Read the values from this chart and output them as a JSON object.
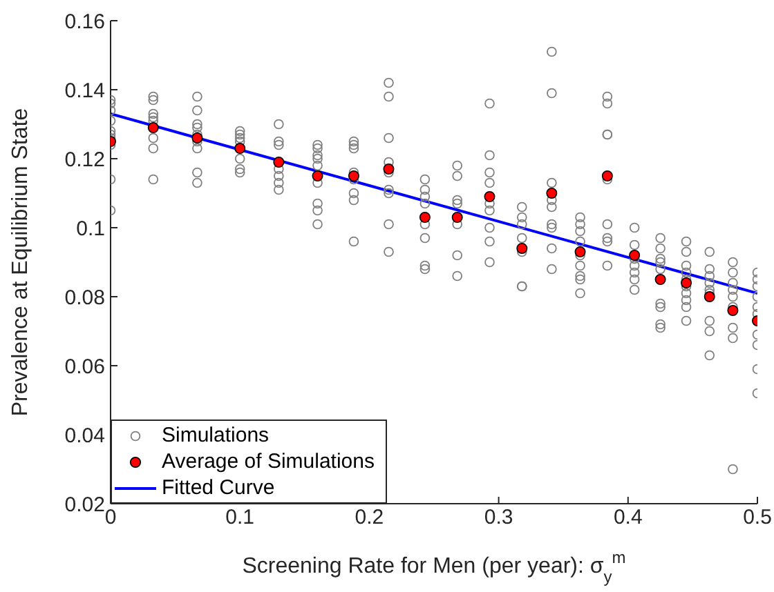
{
  "chart_data": {
    "type": "scatter",
    "xlabel": "Screening Rate for Men (per year): σ$_{y}$$^{m}$",
    "ylabel": "Prevalence at Equilibrium State",
    "xlim": [
      0,
      0.5
    ],
    "xticks": [
      0,
      0.1,
      0.2,
      0.3,
      0.4,
      0.5
    ],
    "ylim": [
      0.02,
      0.16
    ],
    "yticks": [
      0.02,
      0.04,
      0.06,
      0.08,
      0.1,
      0.12,
      0.14,
      0.16
    ],
    "legend": "bottom left",
    "series": [
      {
        "name": "Simulations",
        "marker": "circle",
        "color": "#808080",
        "x": [
          0,
          0,
          0,
          0,
          0,
          0,
          0,
          0,
          0,
          0,
          0.033,
          0.033,
          0.033,
          0.033,
          0.033,
          0.033,
          0.033,
          0.033,
          0.067,
          0.067,
          0.067,
          0.067,
          0.067,
          0.067,
          0.067,
          0.067,
          0.067,
          0.1,
          0.1,
          0.1,
          0.1,
          0.1,
          0.1,
          0.1,
          0.13,
          0.13,
          0.13,
          0.13,
          0.13,
          0.13,
          0.13,
          0.16,
          0.16,
          0.16,
          0.16,
          0.16,
          0.16,
          0.16,
          0.16,
          0.16,
          0.188,
          0.188,
          0.188,
          0.188,
          0.188,
          0.188,
          0.188,
          0.188,
          0.215,
          0.215,
          0.215,
          0.215,
          0.215,
          0.215,
          0.215,
          0.215,
          0.215,
          0.243,
          0.243,
          0.243,
          0.243,
          0.243,
          0.243,
          0.243,
          0.243,
          0.268,
          0.268,
          0.268,
          0.268,
          0.268,
          0.268,
          0.268,
          0.293,
          0.293,
          0.293,
          0.293,
          0.293,
          0.293,
          0.293,
          0.293,
          0.293,
          0.318,
          0.318,
          0.318,
          0.318,
          0.318,
          0.318,
          0.318,
          0.341,
          0.341,
          0.341,
          0.341,
          0.341,
          0.341,
          0.341,
          0.341,
          0.341,
          0.363,
          0.363,
          0.363,
          0.363,
          0.363,
          0.363,
          0.363,
          0.363,
          0.363,
          0.384,
          0.384,
          0.384,
          0.384,
          0.384,
          0.384,
          0.384,
          0.384,
          0.384,
          0.405,
          0.405,
          0.405,
          0.405,
          0.405,
          0.405,
          0.405,
          0.425,
          0.425,
          0.425,
          0.425,
          0.425,
          0.425,
          0.425,
          0.425,
          0.425,
          0.445,
          0.445,
          0.445,
          0.445,
          0.445,
          0.445,
          0.445,
          0.445,
          0.445,
          0.445,
          0.463,
          0.463,
          0.463,
          0.463,
          0.463,
          0.463,
          0.463,
          0.463,
          0.463,
          0.481,
          0.481,
          0.481,
          0.481,
          0.481,
          0.481,
          0.481,
          0.481,
          0.481,
          0.5,
          0.5,
          0.5,
          0.5,
          0.5,
          0.5,
          0.5,
          0.5,
          0.5,
          0.5
        ],
        "values": [
          0.137,
          0.136,
          0.134,
          0.131,
          0.128,
          0.127,
          0.126,
          0.124,
          0.114,
          0.105,
          0.138,
          0.137,
          0.133,
          0.132,
          0.131,
          0.126,
          0.123,
          0.114,
          0.138,
          0.134,
          0.13,
          0.129,
          0.127,
          0.125,
          0.123,
          0.116,
          0.113,
          0.128,
          0.127,
          0.126,
          0.125,
          0.12,
          0.117,
          0.116,
          0.13,
          0.125,
          0.124,
          0.117,
          0.115,
          0.113,
          0.111,
          0.124,
          0.123,
          0.121,
          0.12,
          0.118,
          0.113,
          0.107,
          0.105,
          0.101,
          0.125,
          0.124,
          0.123,
          0.116,
          0.114,
          0.11,
          0.108,
          0.096,
          0.142,
          0.138,
          0.126,
          0.119,
          0.116,
          0.111,
          0.11,
          0.101,
          0.093,
          0.114,
          0.111,
          0.109,
          0.107,
          0.101,
          0.097,
          0.089,
          0.088,
          0.118,
          0.115,
          0.108,
          0.107,
          0.101,
          0.092,
          0.086,
          0.136,
          0.121,
          0.116,
          0.113,
          0.107,
          0.105,
          0.1,
          0.096,
          0.09,
          0.106,
          0.103,
          0.101,
          0.097,
          0.093,
          0.083,
          0.083,
          0.151,
          0.139,
          0.113,
          0.108,
          0.106,
          0.101,
          0.1,
          0.094,
          0.088,
          0.103,
          0.101,
          0.099,
          0.096,
          0.092,
          0.089,
          0.086,
          0.085,
          0.081,
          0.138,
          0.136,
          0.127,
          0.127,
          0.114,
          0.101,
          0.097,
          0.096,
          0.089,
          0.1,
          0.095,
          0.091,
          0.089,
          0.087,
          0.085,
          0.082,
          0.097,
          0.094,
          0.091,
          0.09,
          0.088,
          0.078,
          0.077,
          0.072,
          0.071,
          0.096,
          0.093,
          0.089,
          0.087,
          0.085,
          0.083,
          0.081,
          0.079,
          0.077,
          0.073,
          0.093,
          0.088,
          0.086,
          0.084,
          0.082,
          0.081,
          0.073,
          0.07,
          0.063,
          0.09,
          0.087,
          0.084,
          0.082,
          0.08,
          0.077,
          0.071,
          0.068,
          0.03,
          0.087,
          0.085,
          0.083,
          0.08,
          0.077,
          0.075,
          0.069,
          0.066,
          0.059,
          0.052
        ]
      },
      {
        "name": "Average of Simulations",
        "marker": "circle",
        "color": "#ff0000",
        "x": [
          0,
          0.033,
          0.067,
          0.1,
          0.13,
          0.16,
          0.188,
          0.215,
          0.243,
          0.268,
          0.293,
          0.318,
          0.341,
          0.363,
          0.384,
          0.405,
          0.425,
          0.445,
          0.463,
          0.481,
          0.5
        ],
        "values": [
          0.125,
          0.129,
          0.126,
          0.123,
          0.119,
          0.115,
          0.115,
          0.117,
          0.103,
          0.103,
          0.109,
          0.094,
          0.11,
          0.093,
          0.115,
          0.092,
          0.085,
          0.084,
          0.08,
          0.076,
          0.073
        ]
      },
      {
        "name": "Fitted Curve",
        "type": "line",
        "marker": "none",
        "color": "#0000ff",
        "x": [
          0,
          0.5
        ],
        "values": [
          0.133,
          0.081
        ]
      }
    ]
  }
}
